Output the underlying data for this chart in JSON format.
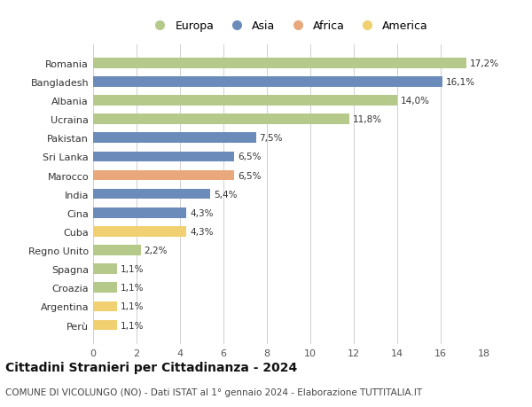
{
  "categories": [
    "Romania",
    "Bangladesh",
    "Albania",
    "Ucraina",
    "Pakistan",
    "Sri Lanka",
    "Marocco",
    "India",
    "Cina",
    "Cuba",
    "Regno Unito",
    "Spagna",
    "Croazia",
    "Argentina",
    "Perù"
  ],
  "values": [
    17.2,
    16.1,
    14.0,
    11.8,
    7.5,
    6.5,
    6.5,
    5.4,
    4.3,
    4.3,
    2.2,
    1.1,
    1.1,
    1.1,
    1.1
  ],
  "labels": [
    "17,2%",
    "16,1%",
    "14,0%",
    "11,8%",
    "7,5%",
    "6,5%",
    "6,5%",
    "5,4%",
    "4,3%",
    "4,3%",
    "2,2%",
    "1,1%",
    "1,1%",
    "1,1%",
    "1,1%"
  ],
  "colors": [
    "#b5c98a",
    "#6b8cba",
    "#b5c98a",
    "#b5c98a",
    "#6b8cba",
    "#6b8cba",
    "#e8a87c",
    "#6b8cba",
    "#6b8cba",
    "#f0d070",
    "#b5c98a",
    "#b5c98a",
    "#b5c98a",
    "#f0d070",
    "#f0d070"
  ],
  "legend_labels": [
    "Europa",
    "Asia",
    "Africa",
    "America"
  ],
  "legend_colors": [
    "#b5c98a",
    "#6b8cba",
    "#e8a87c",
    "#f0d070"
  ],
  "title": "Cittadini Stranieri per Cittadinanza - 2024",
  "subtitle": "COMUNE DI VICOLUNGO (NO) - Dati ISTAT al 1° gennaio 2024 - Elaborazione TUTTITALIA.IT",
  "xlim": [
    0,
    18
  ],
  "xticks": [
    0,
    2,
    4,
    6,
    8,
    10,
    12,
    14,
    16,
    18
  ],
  "background_color": "#ffffff",
  "grid_color": "#d0d0d0",
  "bar_height": 0.55,
  "label_fontsize": 7.5,
  "ytick_fontsize": 8,
  "xtick_fontsize": 8,
  "title_fontsize": 10,
  "subtitle_fontsize": 7.5
}
